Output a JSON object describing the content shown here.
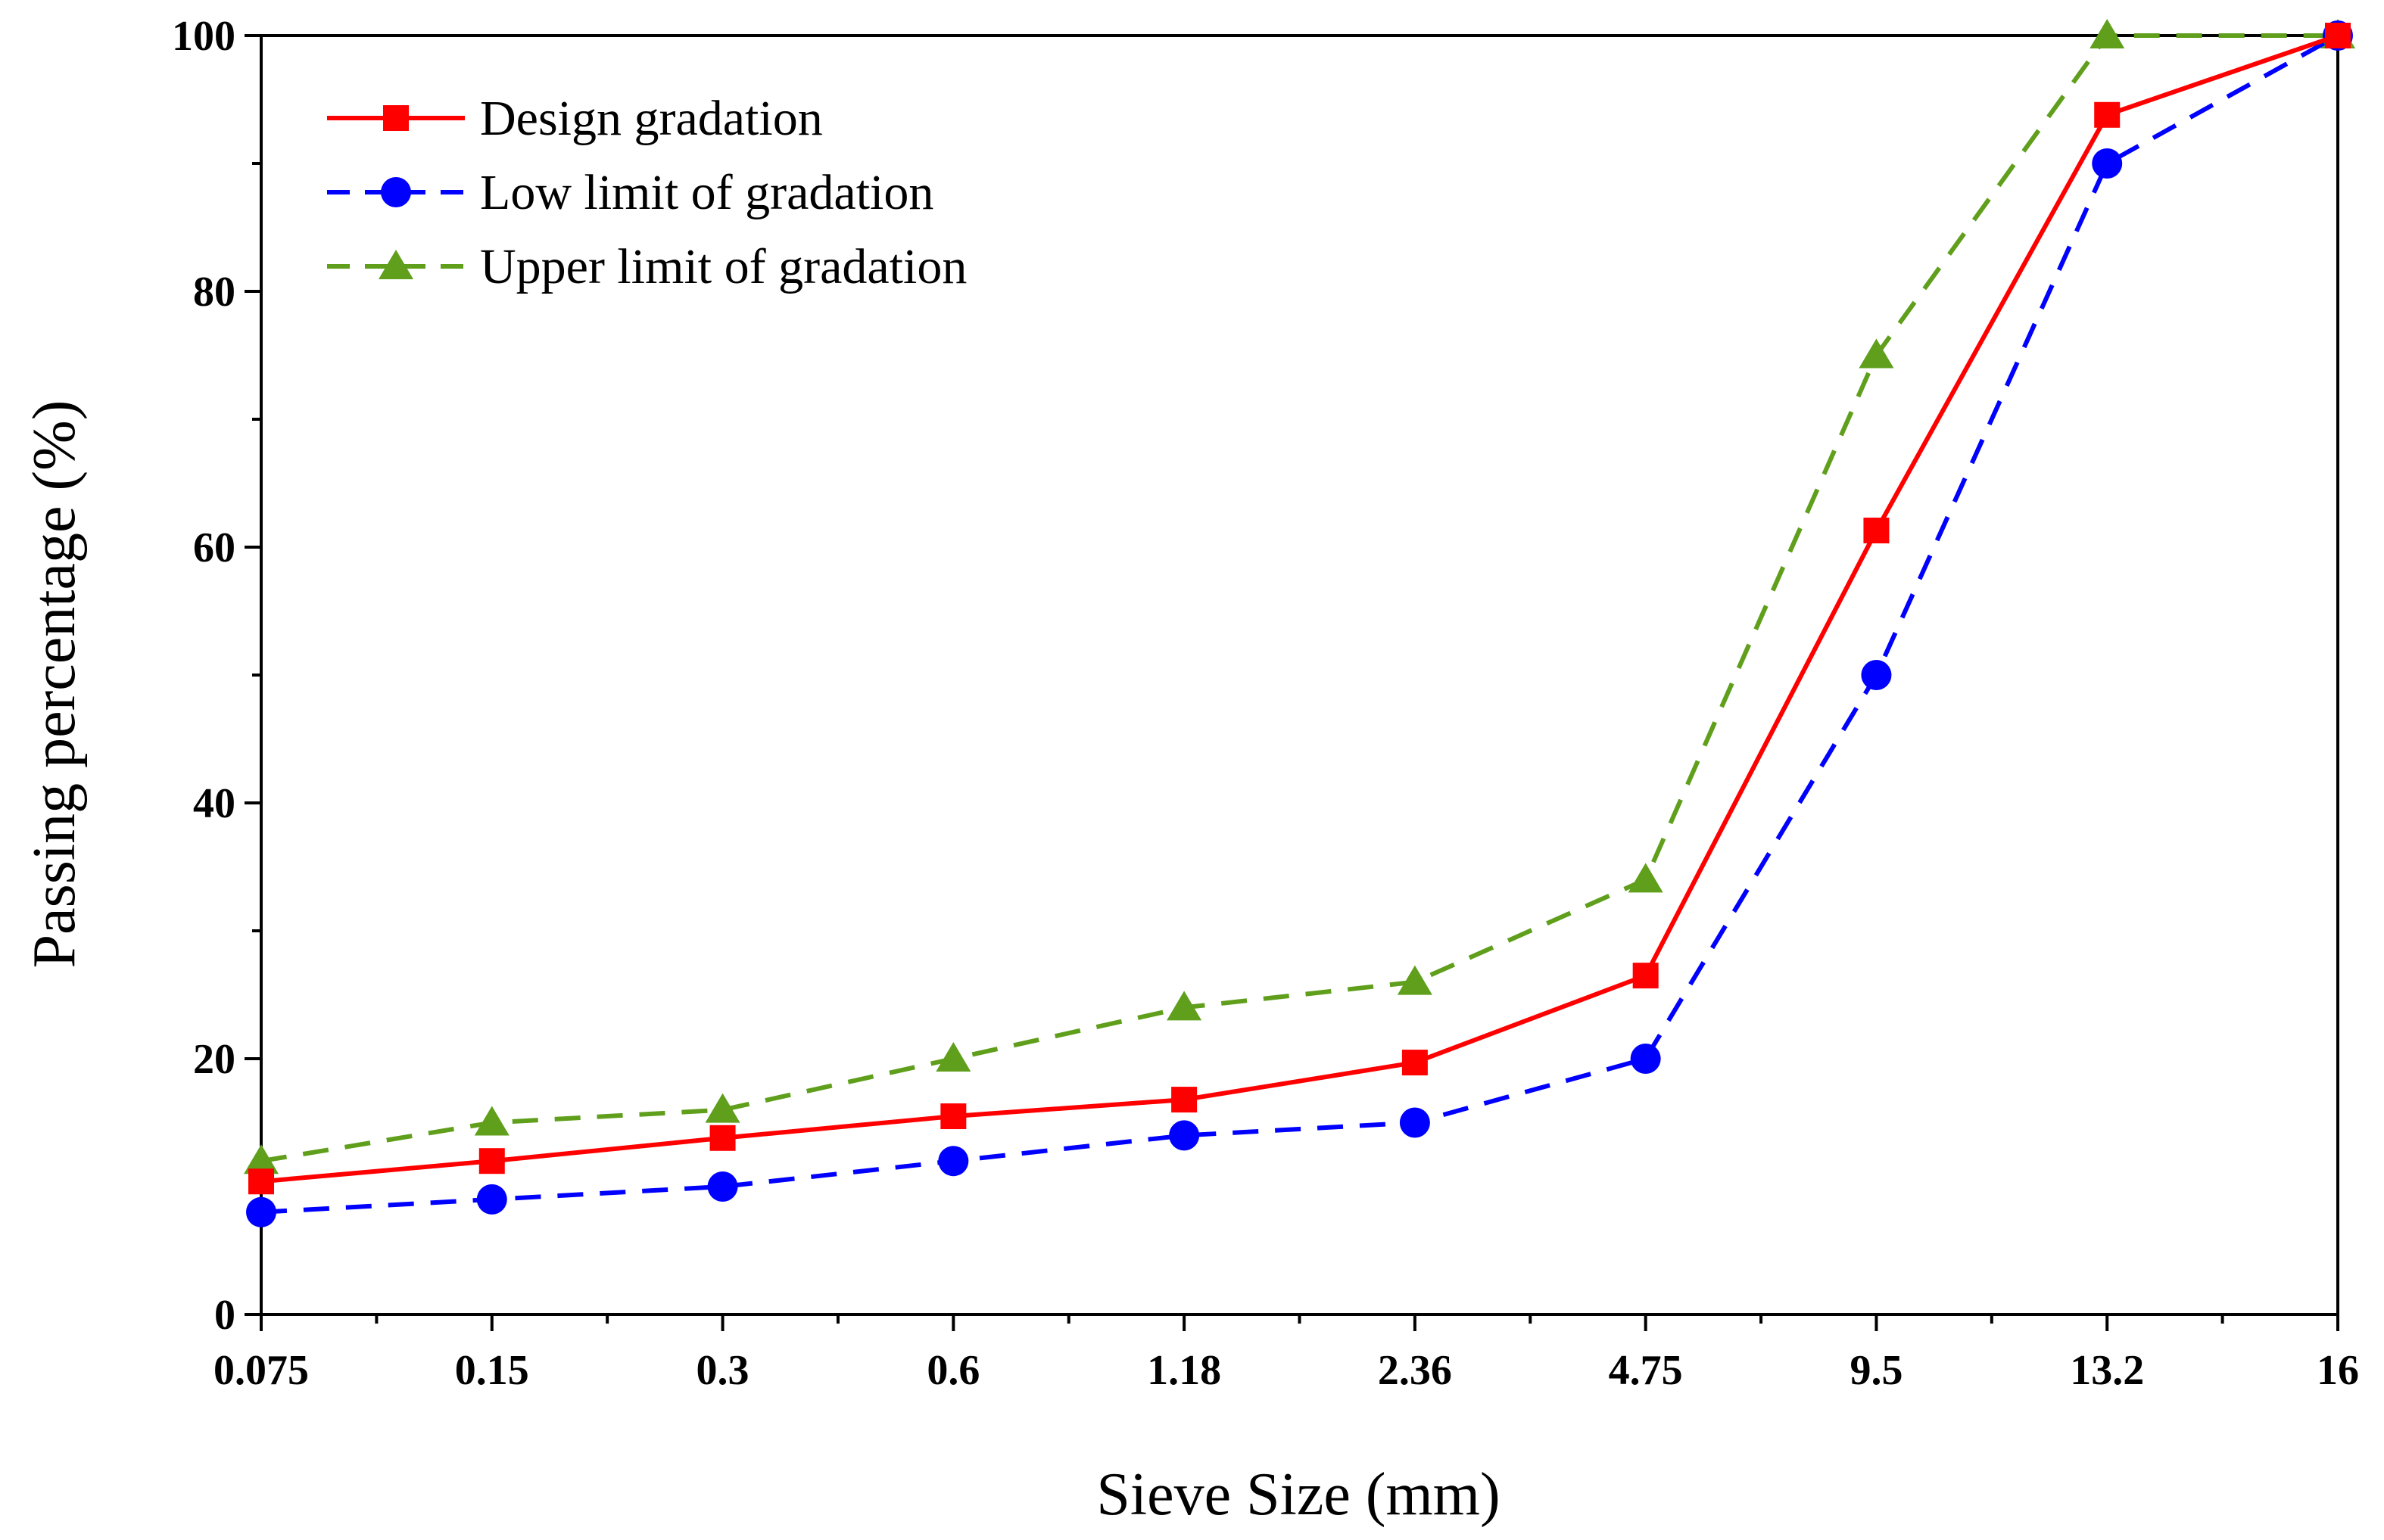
{
  "chart_data": {
    "type": "line",
    "title": "",
    "xlabel": "Sieve Size (mm)",
    "ylabel": "Passing percentage (%)",
    "categories": [
      "0.075",
      "0.15",
      "0.3",
      "0.6",
      "1.18",
      "2.36",
      "4.75",
      "9.5",
      "13.2",
      "16"
    ],
    "ylim": [
      0,
      100
    ],
    "yticks": [
      0,
      20,
      40,
      60,
      80,
      100
    ],
    "legend_position": "top-left",
    "series": [
      {
        "name": "Design gradation",
        "values": [
          10.4,
          12.0,
          13.8,
          15.5,
          16.8,
          19.7,
          26.5,
          61.3,
          93.8,
          100
        ],
        "color": "#ff0000",
        "dash": "solid",
        "marker": "square"
      },
      {
        "name": "Low limit of gradation",
        "values": [
          8,
          9,
          10,
          12,
          14,
          15,
          20,
          50,
          90,
          100
        ],
        "color": "#0000ff",
        "dash": "dashed",
        "marker": "circle"
      },
      {
        "name": "Upper limit of gradation",
        "values": [
          12,
          15,
          16,
          20,
          24,
          26,
          34,
          75,
          100,
          100
        ],
        "color": "#5f9f1b",
        "dash": "dashed",
        "marker": "triangle"
      }
    ]
  }
}
